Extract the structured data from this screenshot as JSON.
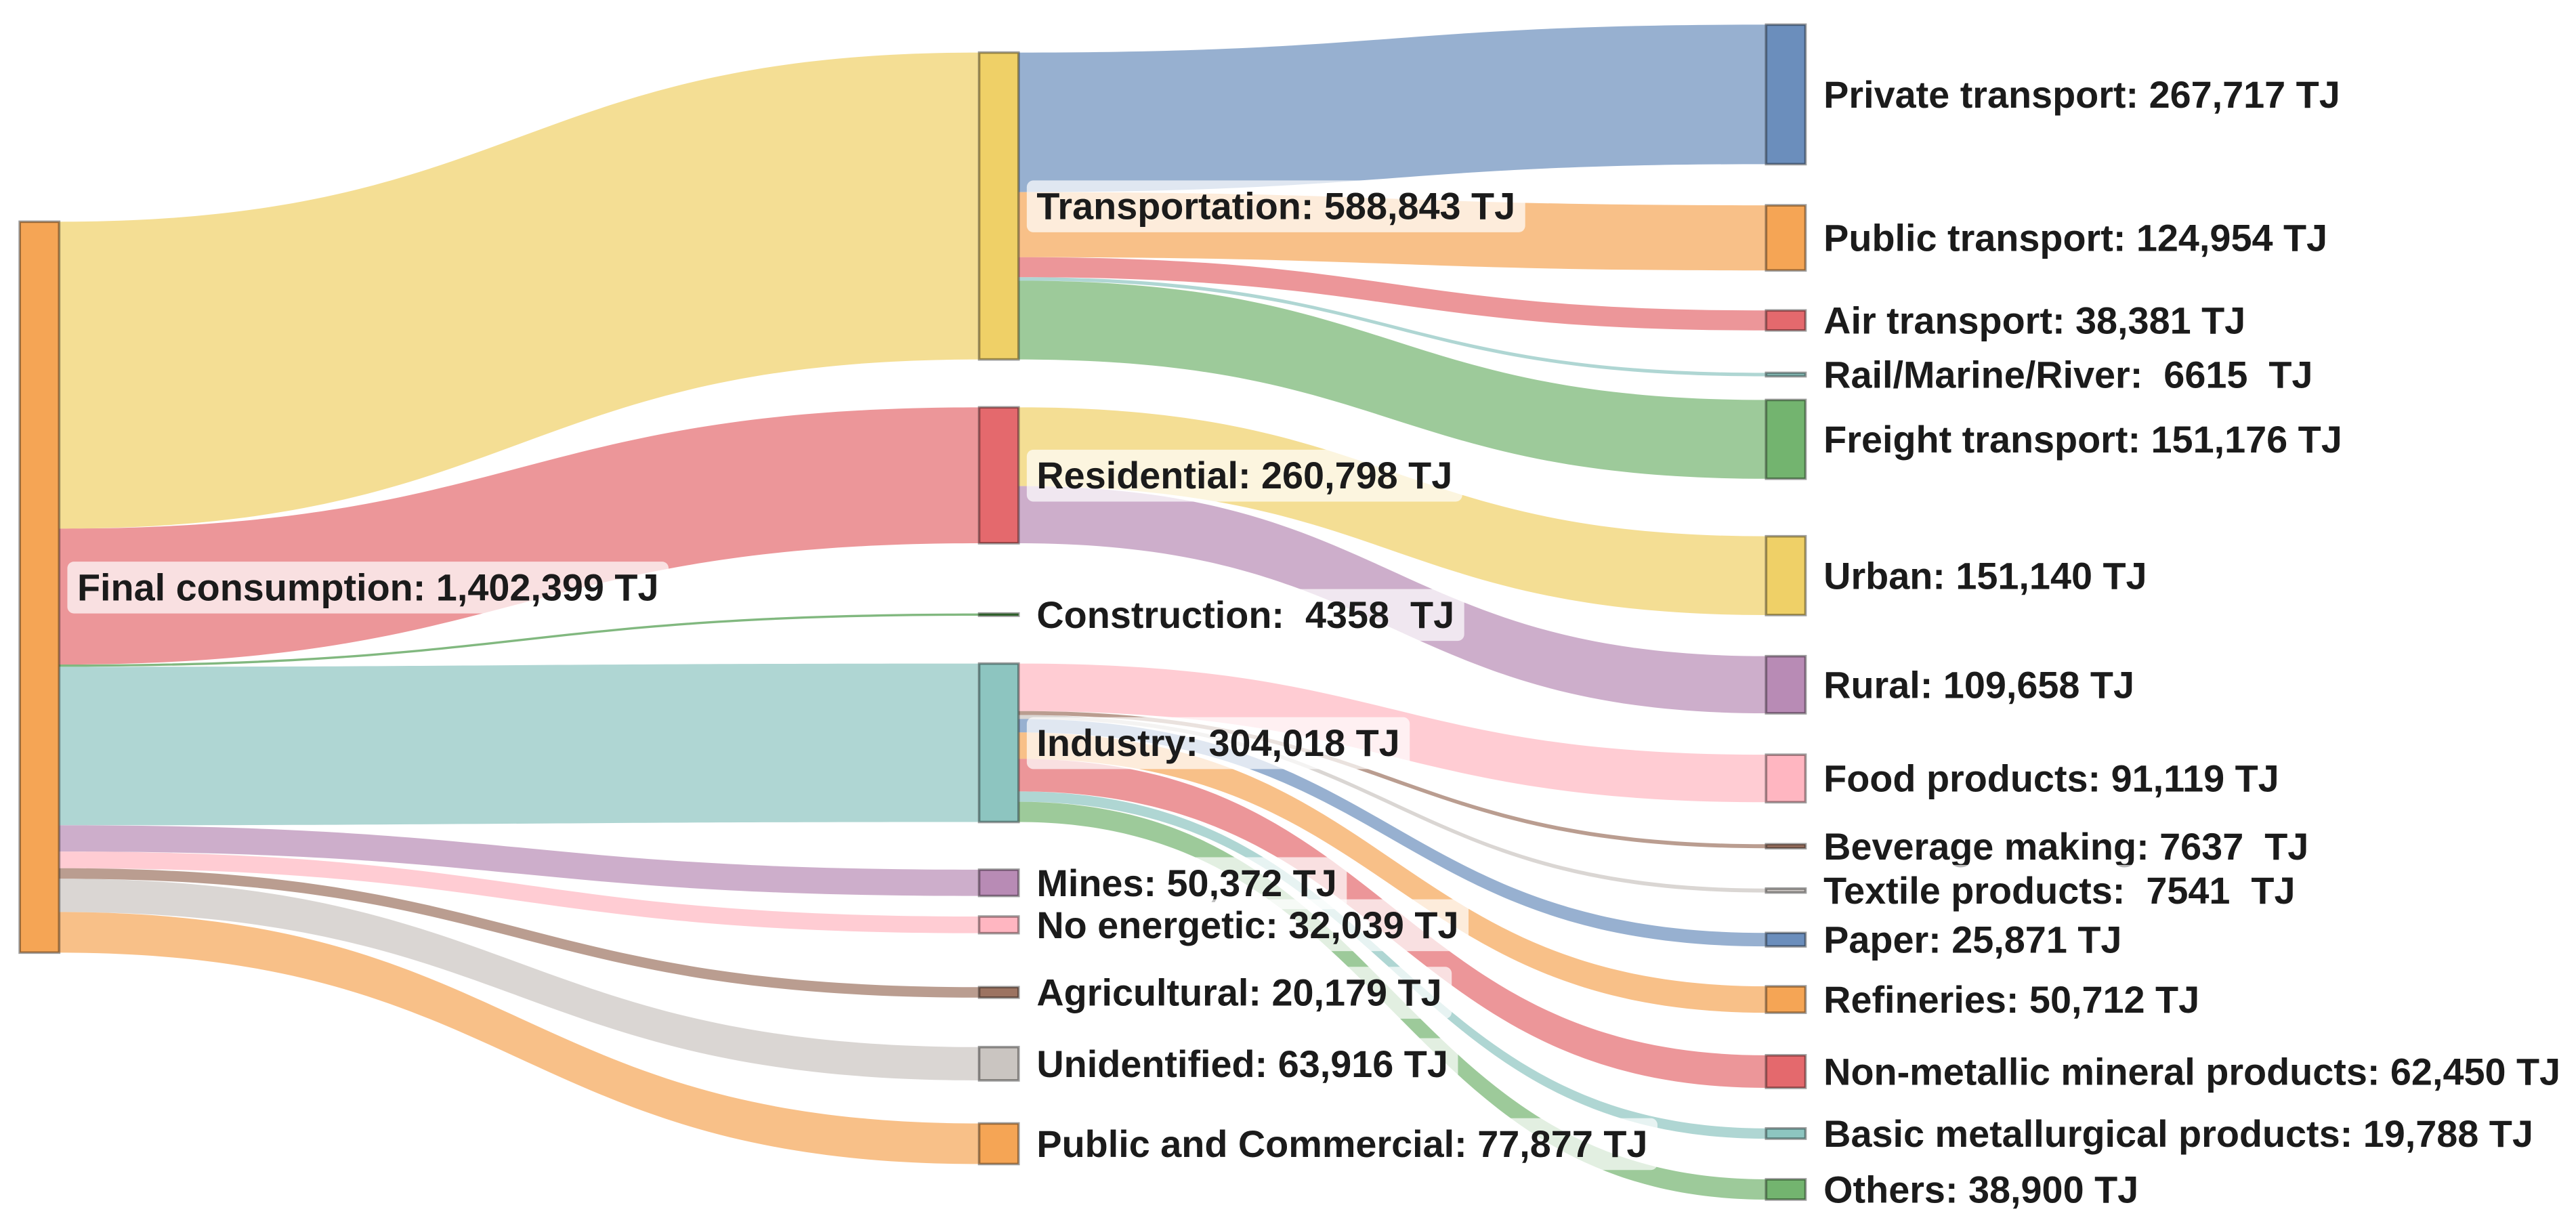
{
  "chart_data": {
    "type": "sankey",
    "nodes": [
      {
        "label": "Final consumption: 1,402,399 TJ",
        "value": 1402399,
        "color": "#F5A555"
      },
      {
        "label": "Transportation: 588,843 TJ",
        "value": 588843,
        "color": "#EFD067"
      },
      {
        "label": "Residential: 260,798 TJ",
        "value": 260798,
        "color": "#E4696D"
      },
      {
        "label": "Construction:  4358  TJ",
        "value": 4358,
        "color": "#4C9A48"
      },
      {
        "label": "Industry: 304,018 TJ",
        "value": 304018,
        "color": "#8DC5C0"
      },
      {
        "label": "Mines: 50,372 TJ",
        "value": 50372,
        "color": "#B88BB5"
      },
      {
        "label": "No energetic: 32,039 TJ",
        "value": 32039,
        "color": "#FFB6C1"
      },
      {
        "label": "Agricultural: 20,179 TJ",
        "value": 20179,
        "color": "#9C7361"
      },
      {
        "label": "Unidentified: 63,916 TJ",
        "value": 63916,
        "color": "#CAC5C1"
      },
      {
        "label": "Public and Commercial: 77,877 TJ",
        "value": 77877,
        "color": "#F5A555"
      },
      {
        "label": "Private transport: 267,717 TJ",
        "value": 267717,
        "color": "#6B8EBC"
      },
      {
        "label": "Public transport: 124,954 TJ",
        "value": 124954,
        "color": "#F5A555"
      },
      {
        "label": "Air transport: 38,381 TJ",
        "value": 38381,
        "color": "#E4696D"
      },
      {
        "label": "Rail/Marine/River:  6615  TJ",
        "value": 6615,
        "color": "#8DC5C0"
      },
      {
        "label": "Freight transport: 151,176 TJ",
        "value": 151176,
        "color": "#73B46F"
      },
      {
        "label": "Urban: 151,140 TJ",
        "value": 151140,
        "color": "#EFD067"
      },
      {
        "label": "Rural: 109,658 TJ",
        "value": 109658,
        "color": "#B88BB5"
      },
      {
        "label": "Food products: 91,119 TJ",
        "value": 91119,
        "color": "#FFB6C1"
      },
      {
        "label": "Beverage making: 7637  TJ",
        "value": 7637,
        "color": "#9C7361"
      },
      {
        "label": "Textile products:  7541  TJ",
        "value": 7541,
        "color": "#CAC5C1"
      },
      {
        "label": "Paper: 25,871 TJ",
        "value": 25871,
        "color": "#6B8EBC"
      },
      {
        "label": "Refineries: 50,712 TJ",
        "value": 50712,
        "color": "#F5A555"
      },
      {
        "label": "Non-metallic mineral products: 62,450 TJ",
        "value": 62450,
        "color": "#E4696D"
      },
      {
        "label": "Basic metallurgical products: 19,788 TJ",
        "value": 19788,
        "color": "#8DC5C0"
      },
      {
        "label": "Others: 38,900 TJ",
        "value": 38900,
        "color": "#73B46F"
      }
    ],
    "links": [
      {
        "source": 0,
        "target": 1,
        "value": 588843
      },
      {
        "source": 0,
        "target": 2,
        "value": 260798
      },
      {
        "source": 0,
        "target": 3,
        "value": 4358
      },
      {
        "source": 0,
        "target": 4,
        "value": 304018
      },
      {
        "source": 0,
        "target": 5,
        "value": 50372
      },
      {
        "source": 0,
        "target": 6,
        "value": 32039
      },
      {
        "source": 0,
        "target": 7,
        "value": 20179
      },
      {
        "source": 0,
        "target": 8,
        "value": 63916
      },
      {
        "source": 0,
        "target": 9,
        "value": 77877
      },
      {
        "source": 1,
        "target": 10,
        "value": 267717
      },
      {
        "source": 1,
        "target": 11,
        "value": 124954
      },
      {
        "source": 1,
        "target": 12,
        "value": 38381
      },
      {
        "source": 1,
        "target": 13,
        "value": 6615
      },
      {
        "source": 1,
        "target": 14,
        "value": 151176
      },
      {
        "source": 2,
        "target": 15,
        "value": 151140
      },
      {
        "source": 2,
        "target": 16,
        "value": 109658
      },
      {
        "source": 4,
        "target": 17,
        "value": 91119
      },
      {
        "source": 4,
        "target": 18,
        "value": 7637
      },
      {
        "source": 4,
        "target": 19,
        "value": 7541
      },
      {
        "source": 4,
        "target": 20,
        "value": 25871
      },
      {
        "source": 4,
        "target": 21,
        "value": 50712
      },
      {
        "source": 4,
        "target": 22,
        "value": 62450
      },
      {
        "source": 4,
        "target": 23,
        "value": 19788
      },
      {
        "source": 4,
        "target": 24,
        "value": 38900
      }
    ]
  }
}
